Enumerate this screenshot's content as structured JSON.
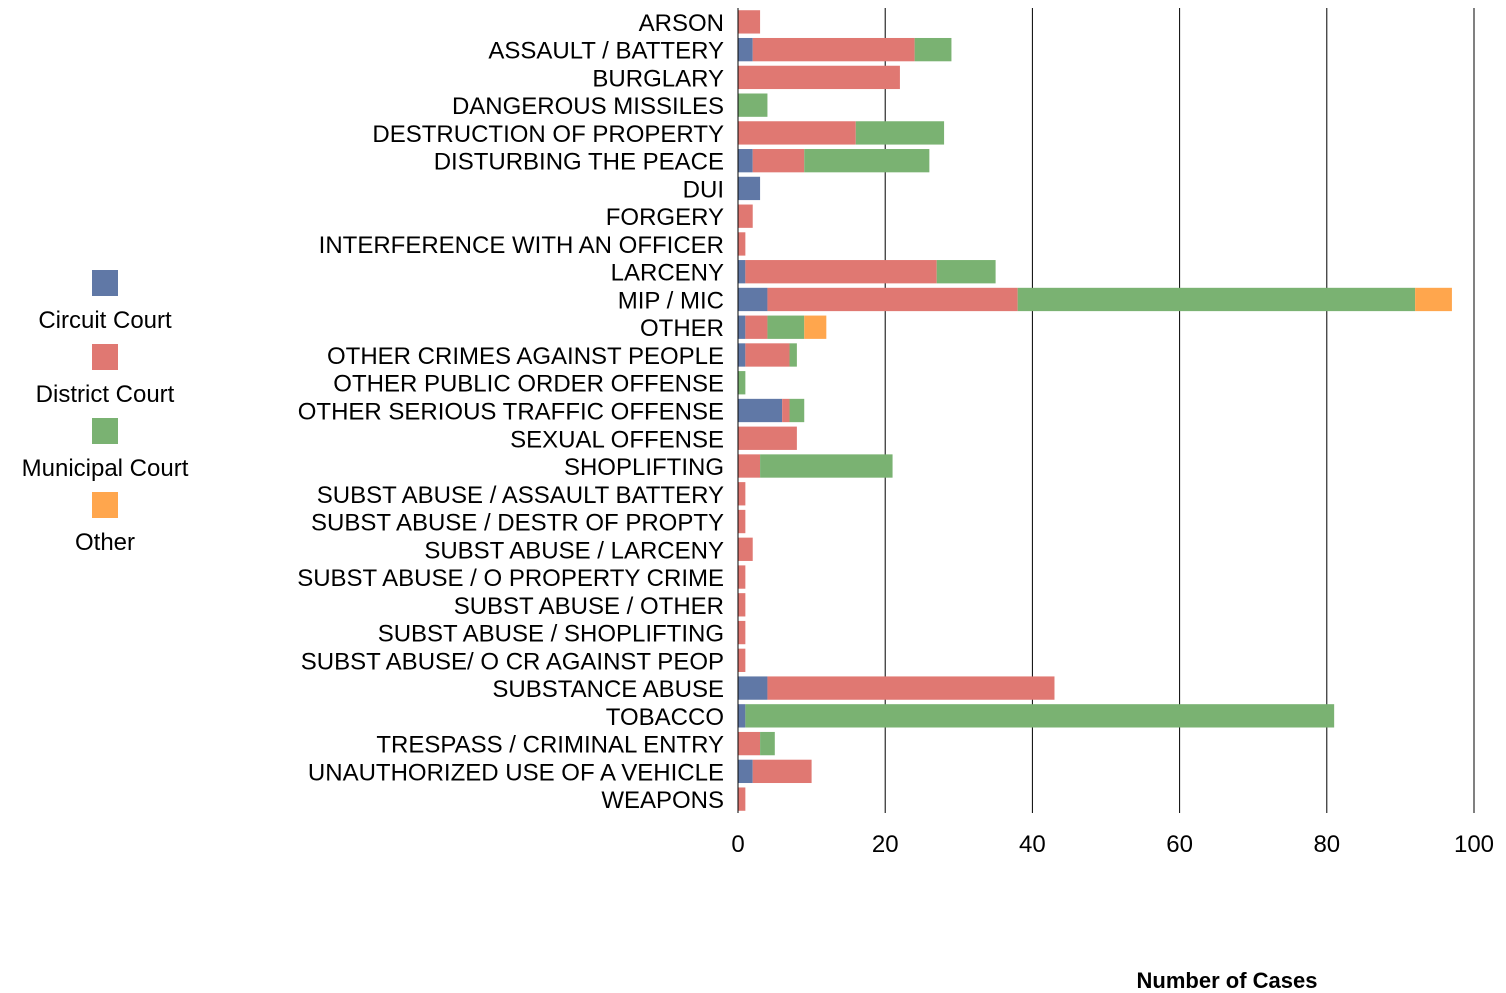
{
  "chart_data": {
    "type": "bar",
    "orientation": "horizontal",
    "stacked": true,
    "xlabel": "Number of Cases",
    "ylabel": "",
    "xlim": [
      0,
      100
    ],
    "xticks": [
      0,
      20,
      40,
      60,
      80,
      100
    ],
    "tick_labels": [
      "0",
      "20",
      "40",
      "60",
      "80",
      "100"
    ],
    "grid": "vertical",
    "legend_position": "left",
    "categories": [
      "ARSON",
      "ASSAULT / BATTERY",
      "BURGLARY",
      "DANGEROUS MISSILES",
      "DESTRUCTION OF PROPERTY",
      "DISTURBING THE PEACE",
      "DUI",
      "FORGERY",
      "INTERFERENCE WITH AN OFFICER",
      "LARCENY",
      "MIP / MIC",
      "OTHER",
      "OTHER CRIMES AGAINST PEOPLE",
      "OTHER PUBLIC ORDER OFFENSE",
      "OTHER SERIOUS TRAFFIC OFFENSE",
      "SEXUAL OFFENSE",
      "SHOPLIFTING",
      "SUBST ABUSE / ASSAULT BATTERY",
      "SUBST ABUSE / DESTR OF PROPTY",
      "SUBST ABUSE / LARCENY",
      "SUBST ABUSE / O PROPERTY CRIME",
      "SUBST ABUSE / OTHER",
      "SUBST ABUSE / SHOPLIFTING",
      "SUBST ABUSE/ O CR AGAINST PEOP",
      "SUBSTANCE ABUSE",
      "TOBACCO",
      "TRESPASS / CRIMINAL ENTRY",
      "UNAUTHORIZED USE OF A VEHICLE",
      "WEAPONS"
    ],
    "series": [
      {
        "name": "Circuit Court",
        "color": "#6078A6",
        "values": [
          0,
          2,
          0,
          0,
          0,
          2,
          3,
          0,
          0,
          1,
          4,
          1,
          1,
          0,
          6,
          0,
          0,
          0,
          0,
          0,
          0,
          0,
          0,
          0,
          4,
          1,
          0,
          2,
          0
        ]
      },
      {
        "name": "District Court",
        "color": "#E07872",
        "values": [
          3,
          22,
          22,
          0,
          16,
          7,
          0,
          2,
          1,
          26,
          34,
          3,
          6,
          0,
          1,
          8,
          3,
          1,
          1,
          2,
          1,
          1,
          1,
          1,
          39,
          0,
          3,
          8,
          1
        ]
      },
      {
        "name": "Municipal Court",
        "color": "#7AB272",
        "values": [
          0,
          5,
          0,
          4,
          12,
          17,
          0,
          0,
          0,
          8,
          54,
          5,
          1,
          1,
          2,
          0,
          18,
          0,
          0,
          0,
          0,
          0,
          0,
          0,
          0,
          80,
          2,
          0,
          0
        ]
      },
      {
        "name": "Other",
        "color": "#FFA64D",
        "values": [
          0,
          0,
          0,
          0,
          0,
          0,
          0,
          0,
          0,
          0,
          5,
          3,
          0,
          0,
          0,
          0,
          0,
          0,
          0,
          0,
          0,
          0,
          0,
          0,
          0,
          0,
          0,
          0,
          0
        ]
      }
    ]
  }
}
